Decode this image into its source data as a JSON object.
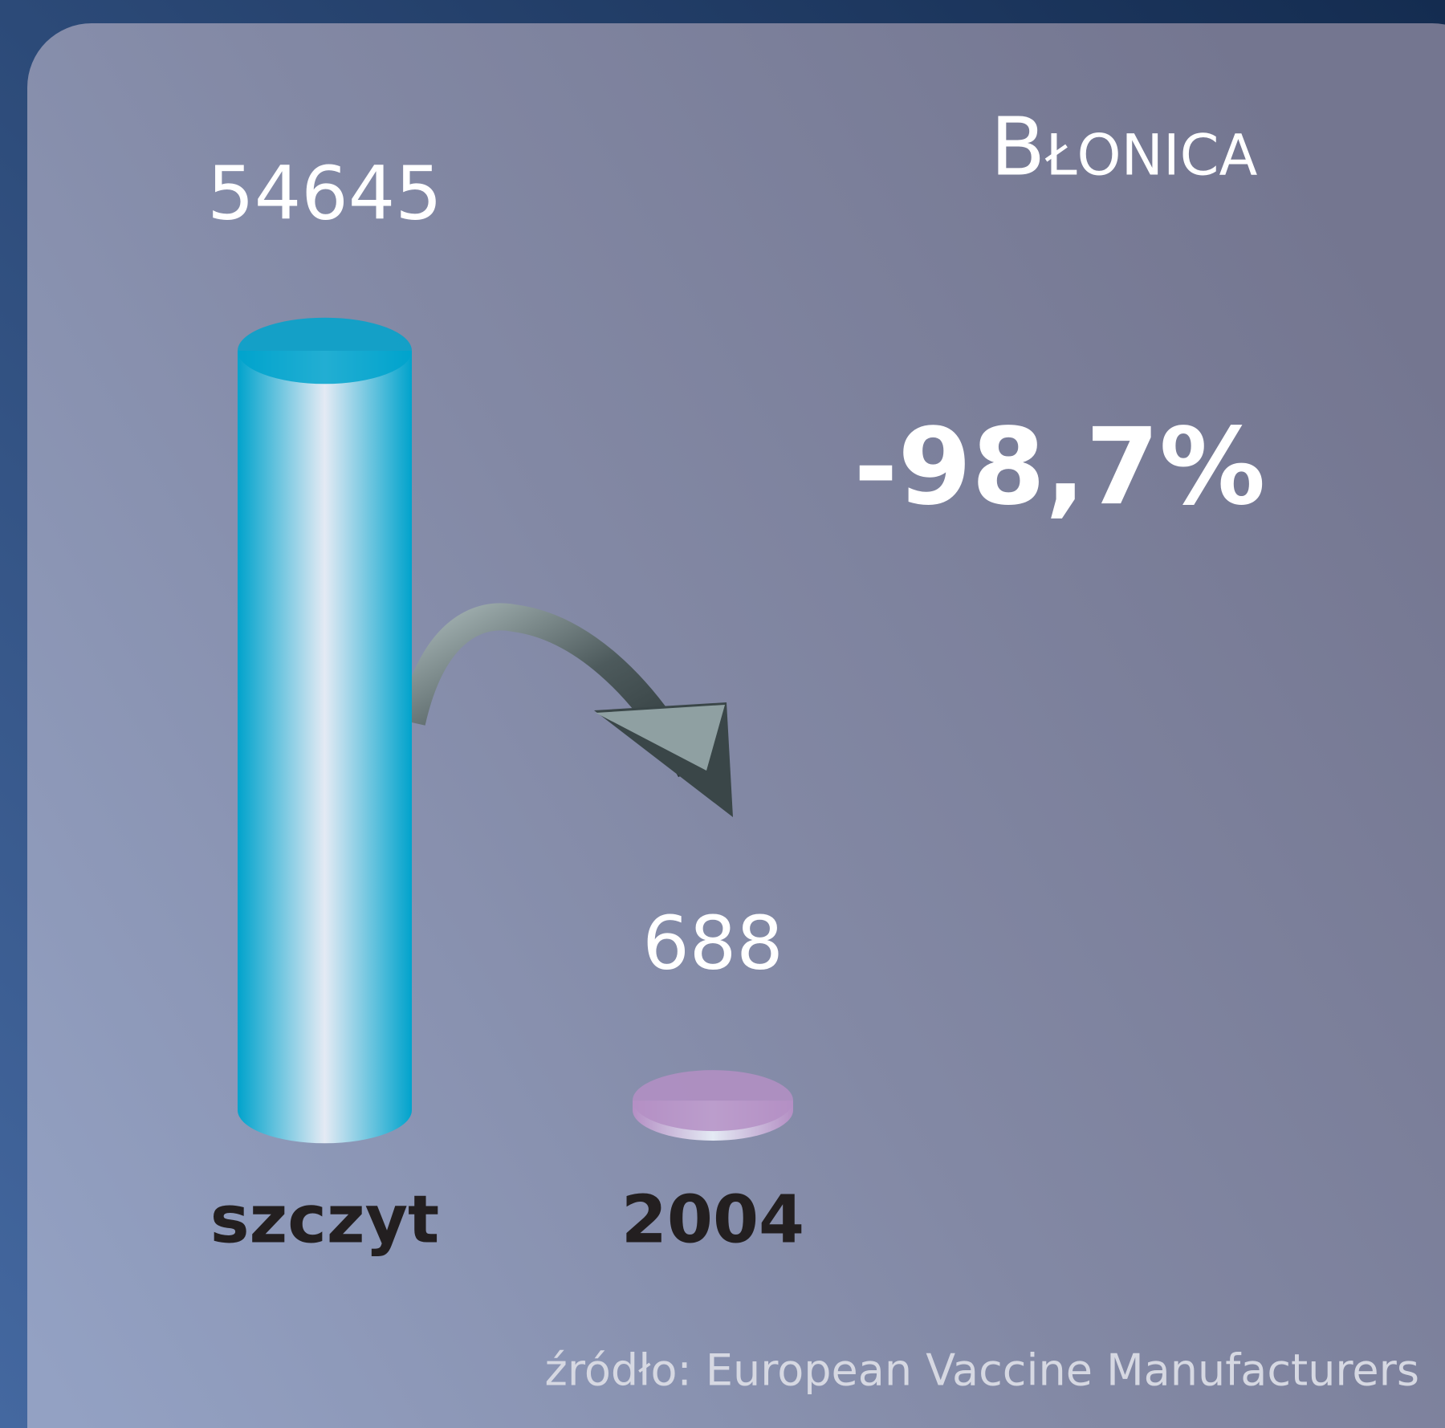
{
  "chart_data": {
    "type": "bar",
    "title": "Błonica",
    "annotation": "-98,7%",
    "source": "źródło: European Vaccine Manufacturers",
    "categories": [
      "szczyt",
      "2004"
    ],
    "values": [
      54645,
      688
    ],
    "colors": [
      "#00a3cc",
      "#b48fc4"
    ]
  }
}
